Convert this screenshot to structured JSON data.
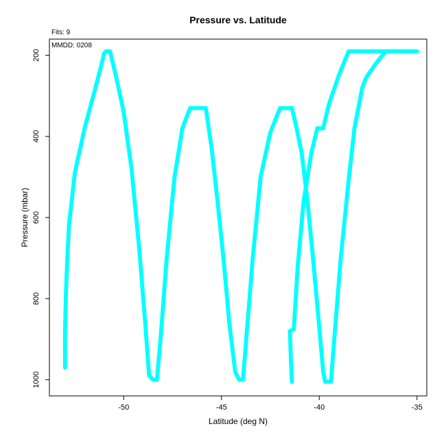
{
  "chart_data": {
    "type": "scatter",
    "title": "Pressure vs. Latitude",
    "annotations": {
      "fits": "Fits: 9",
      "mmdd": "MMDD: 0208"
    },
    "xlabel": "Latitude (deg N)",
    "ylabel": "Pressure (mbar)",
    "xlim": [
      -53.8,
      -34.5
    ],
    "ylim": [
      1040,
      160
    ],
    "y_reversed": true,
    "xticks": [
      -50,
      -45,
      -40,
      -35
    ],
    "xtick_labels": [
      "-50",
      "-45",
      "-40",
      "-35"
    ],
    "yticks": [
      200,
      400,
      600,
      800,
      1000
    ],
    "ytick_labels": [
      "200",
      "400",
      "600",
      "800",
      "1000"
    ],
    "grid": false,
    "marker_color": "#00FFFF",
    "segments": [
      [
        [
          -53.0,
          970
        ],
        [
          -53.0,
          880
        ],
        [
          -52.95,
          780
        ],
        [
          -52.9,
          720
        ],
        [
          -52.8,
          620
        ],
        [
          -52.5,
          490
        ],
        [
          -52.0,
          380
        ],
        [
          -51.5,
          290
        ],
        [
          -51.2,
          235
        ],
        [
          -51.0,
          195
        ],
        [
          -50.9,
          190
        ],
        [
          -50.7,
          190
        ],
        [
          -50.4,
          250
        ],
        [
          -50.0,
          340
        ],
        [
          -49.6,
          480
        ],
        [
          -49.2,
          680
        ],
        [
          -48.9,
          860
        ],
        [
          -48.7,
          990
        ],
        [
          -48.5,
          1000
        ],
        [
          -48.3,
          1000
        ],
        [
          -48.1,
          890
        ],
        [
          -47.8,
          700
        ],
        [
          -47.4,
          500
        ],
        [
          -47.0,
          380
        ],
        [
          -46.6,
          330
        ],
        [
          -45.8,
          330
        ],
        [
          -45.5,
          430
        ],
        [
          -45.2,
          560
        ],
        [
          -44.9,
          700
        ],
        [
          -44.6,
          860
        ],
        [
          -44.3,
          980
        ],
        [
          -44.1,
          1000
        ],
        [
          -43.9,
          1000
        ],
        [
          -43.7,
          880
        ],
        [
          -43.4,
          700
        ],
        [
          -43.0,
          500
        ],
        [
          -42.5,
          390
        ],
        [
          -42.0,
          330
        ],
        [
          -41.4,
          330
        ],
        [
          -41.2,
          370
        ],
        [
          -40.9,
          440
        ],
        [
          -40.6,
          560
        ],
        [
          -40.3,
          710
        ],
        [
          -40.0,
          870
        ],
        [
          -39.8,
          980
        ],
        [
          -39.7,
          1005
        ],
        [
          -39.4,
          1005
        ],
        [
          -39.2,
          880
        ],
        [
          -38.9,
          700
        ],
        [
          -38.5,
          510
        ],
        [
          -38.2,
          380
        ],
        [
          -37.8,
          280
        ],
        [
          -37.6,
          255
        ],
        [
          -37.1,
          220
        ],
        [
          -36.6,
          190
        ],
        [
          -35.0,
          190
        ]
      ],
      [
        [
          -41.5,
          880
        ],
        [
          -41.45,
          950
        ],
        [
          -41.4,
          1005
        ]
      ],
      [
        [
          -41.5,
          880
        ],
        [
          -41.3,
          875
        ],
        [
          -41.1,
          720
        ],
        [
          -40.8,
          560
        ],
        [
          -40.4,
          440
        ],
        [
          -40.1,
          380
        ],
        [
          -39.8,
          380
        ],
        [
          -39.5,
          320
        ],
        [
          -39.0,
          250
        ],
        [
          -38.5,
          190
        ],
        [
          -36.5,
          190
        ],
        [
          -35.0,
          190
        ]
      ]
    ]
  }
}
